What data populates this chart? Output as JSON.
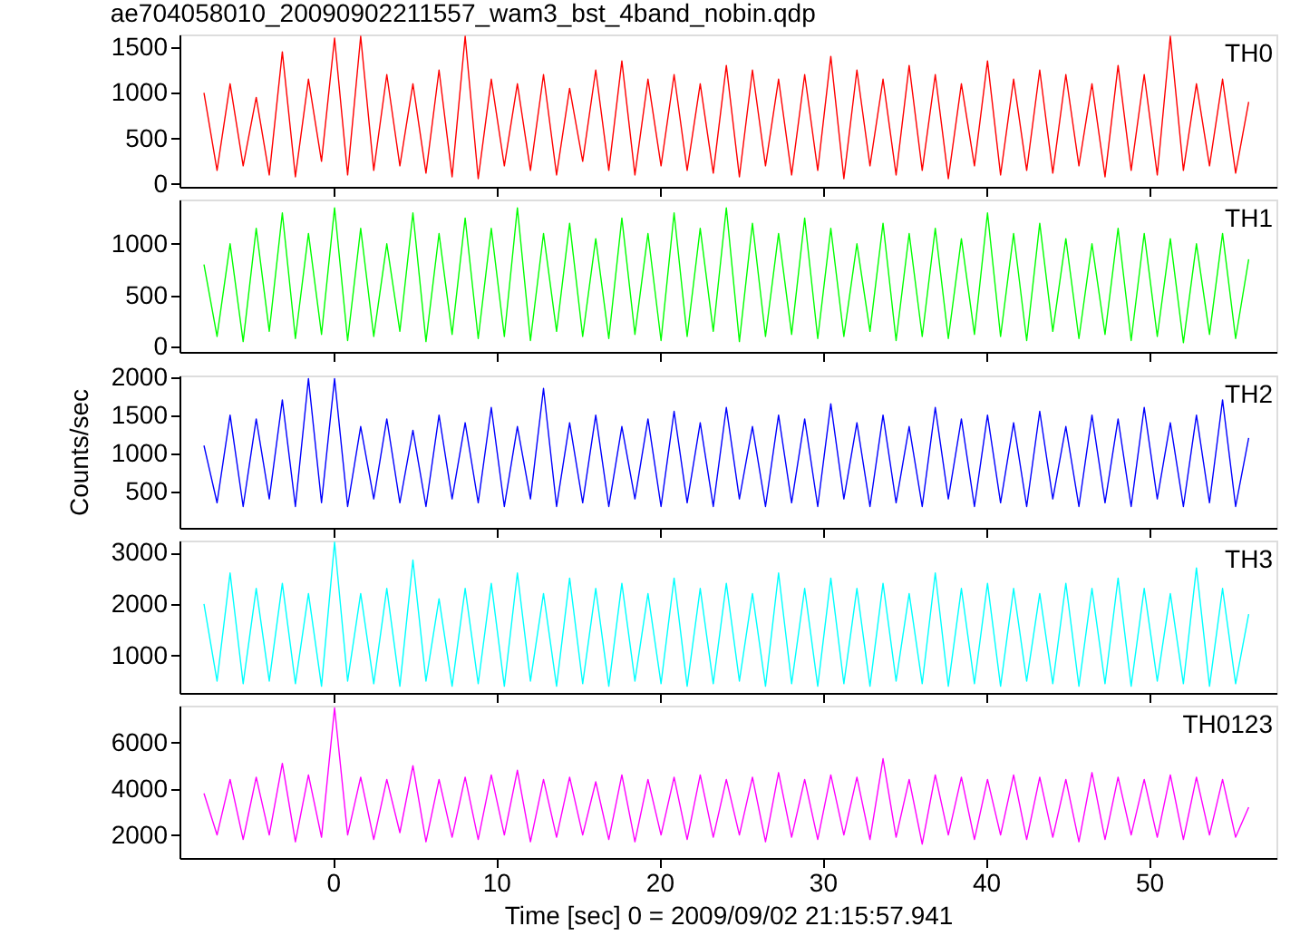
{
  "chart_data": [
    {
      "type": "line",
      "title": "ae704058010_20090902211557_wam3_bst_4band_nobin.qdp",
      "xlim": [
        -9.4,
        57.8
      ],
      "xticks": [
        0,
        10,
        20,
        30,
        40,
        50
      ],
      "x": [
        -7.9,
        -7.1,
        -6.3,
        -5.5,
        -4.7,
        -3.9,
        -3.1,
        -2.3,
        -1.5,
        -0.7,
        0.1,
        0.9,
        1.7,
        2.5,
        3.3,
        4.1,
        4.9,
        5.7,
        6.5,
        7.3,
        8.1,
        8.9,
        9.7,
        10.5,
        11.3,
        12.1,
        12.9,
        13.7,
        14.5,
        15.3,
        16.1,
        16.9,
        17.7,
        18.5,
        19.3,
        20.1,
        20.9,
        21.7,
        22.5,
        23.3,
        24.1,
        24.9,
        25.7,
        26.5,
        27.3,
        28.1,
        28.9,
        29.7,
        30.5,
        31.3,
        32.1,
        32.9,
        33.7,
        34.5,
        35.3,
        36.1,
        36.9,
        37.7,
        38.5,
        39.3,
        40.1,
        40.9,
        41.7,
        42.5,
        43.3,
        44.1,
        44.9,
        45.7,
        46.5,
        47.3,
        48.1,
        48.9,
        49.7,
        50.5,
        51.3,
        52.1,
        52.9,
        53.7,
        54.5,
        55.3,
        56.1
      ],
      "ylim": [
        -30,
        1640
      ],
      "yticks": [
        0,
        500,
        1000,
        1500
      ],
      "tick_labels": "y",
      "series": [
        {
          "name": "TH0",
          "color": "#ff0000",
          "values": [
            1000,
            150,
            1100,
            200,
            950,
            100,
            1450,
            80,
            1150,
            250,
            1600,
            100,
            1620,
            150,
            1200,
            200,
            1100,
            120,
            1250,
            80,
            1620,
            60,
            1150,
            200,
            1100,
            150,
            1200,
            100,
            1050,
            250,
            1250,
            150,
            1350,
            100,
            1150,
            200,
            1200,
            150,
            1100,
            120,
            1300,
            80,
            1250,
            200,
            1150,
            100,
            1200,
            150,
            1400,
            60,
            1250,
            200,
            1150,
            100,
            1300,
            150,
            1200,
            60,
            1100,
            200,
            1350,
            100,
            1150,
            150,
            1250,
            120,
            1200,
            200,
            1100,
            80,
            1300,
            150,
            1200,
            100,
            1620,
            150,
            1100,
            200,
            1150,
            120,
            900
          ]
        }
      ]
    },
    {
      "type": "line",
      "xlim": [
        -9.4,
        57.8
      ],
      "xticks": [
        0,
        10,
        20,
        30,
        40,
        50
      ],
      "x": [
        -7.9,
        -7.1,
        -6.3,
        -5.5,
        -4.7,
        -3.9,
        -3.1,
        -2.3,
        -1.5,
        -0.7,
        0.1,
        0.9,
        1.7,
        2.5,
        3.3,
        4.1,
        4.9,
        5.7,
        6.5,
        7.3,
        8.1,
        8.9,
        9.7,
        10.5,
        11.3,
        12.1,
        12.9,
        13.7,
        14.5,
        15.3,
        16.1,
        16.9,
        17.7,
        18.5,
        19.3,
        20.1,
        20.9,
        21.7,
        22.5,
        23.3,
        24.1,
        24.9,
        25.7,
        26.5,
        27.3,
        28.1,
        28.9,
        29.7,
        30.5,
        31.3,
        32.1,
        32.9,
        33.7,
        34.5,
        35.3,
        36.1,
        36.9,
        37.7,
        38.5,
        39.3,
        40.1,
        40.9,
        41.7,
        42.5,
        43.3,
        44.1,
        44.9,
        45.7,
        46.5,
        47.3,
        48.1,
        48.9,
        49.7,
        50.5,
        51.3,
        52.1,
        52.9,
        53.7,
        54.5,
        55.3,
        56.1
      ],
      "ylim": [
        -50,
        1430
      ],
      "yticks": [
        0,
        500,
        1000
      ],
      "tick_labels": "y",
      "series": [
        {
          "name": "TH1",
          "color": "#00ff00",
          "values": [
            800,
            100,
            1000,
            50,
            1150,
            150,
            1300,
            80,
            1100,
            120,
            1350,
            60,
            1150,
            100,
            1000,
            150,
            1300,
            50,
            1100,
            120,
            1250,
            80,
            1150,
            100,
            1350,
            60,
            1100,
            150,
            1200,
            100,
            1050,
            80,
            1250,
            120,
            1100,
            60,
            1300,
            100,
            1150,
            150,
            1350,
            50,
            1200,
            100,
            1100,
            120,
            1250,
            80,
            1150,
            100,
            1000,
            150,
            1200,
            60,
            1100,
            100,
            1150,
            80,
            1050,
            120,
            1300,
            100,
            1100,
            60,
            1200,
            150,
            1050,
            80,
            1000,
            120,
            1150,
            60,
            1100,
            100,
            1050,
            40,
            1000,
            120,
            1100,
            80,
            850
          ]
        }
      ]
    },
    {
      "type": "line",
      "ylabel": "Counts/sec",
      "xlim": [
        -9.4,
        57.8
      ],
      "xticks": [
        0,
        10,
        20,
        30,
        40,
        50
      ],
      "x": [
        -7.9,
        -7.1,
        -6.3,
        -5.5,
        -4.7,
        -3.9,
        -3.1,
        -2.3,
        -1.5,
        -0.7,
        0.1,
        0.9,
        1.7,
        2.5,
        3.3,
        4.1,
        4.9,
        5.7,
        6.5,
        7.3,
        8.1,
        8.9,
        9.7,
        10.5,
        11.3,
        12.1,
        12.9,
        13.7,
        14.5,
        15.3,
        16.1,
        16.9,
        17.7,
        18.5,
        19.3,
        20.1,
        20.9,
        21.7,
        22.5,
        23.3,
        24.1,
        24.9,
        25.7,
        26.5,
        27.3,
        28.1,
        28.9,
        29.7,
        30.5,
        31.3,
        32.1,
        32.9,
        33.7,
        34.5,
        35.3,
        36.1,
        36.9,
        37.7,
        38.5,
        39.3,
        40.1,
        40.9,
        41.7,
        42.5,
        43.3,
        44.1,
        44.9,
        45.7,
        46.5,
        47.3,
        48.1,
        48.9,
        49.7,
        50.5,
        51.3,
        52.1,
        52.9,
        53.7,
        54.5,
        55.3,
        56.1
      ],
      "ylim": [
        20,
        2020
      ],
      "yticks": [
        500,
        1000,
        1500,
        2000
      ],
      "tick_labels": "y",
      "series": [
        {
          "name": "TH2",
          "color": "#0000ff",
          "values": [
            1100,
            350,
            1500,
            300,
            1450,
            400,
            1700,
            300,
            1980,
            350,
            1980,
            300,
            1350,
            400,
            1450,
            350,
            1300,
            300,
            1500,
            400,
            1400,
            350,
            1600,
            300,
            1350,
            400,
            1850,
            300,
            1400,
            350,
            1500,
            300,
            1350,
            400,
            1450,
            300,
            1550,
            350,
            1400,
            300,
            1600,
            400,
            1350,
            300,
            1500,
            350,
            1450,
            300,
            1650,
            400,
            1400,
            300,
            1500,
            350,
            1350,
            300,
            1600,
            400,
            1450,
            300,
            1500,
            350,
            1400,
            300,
            1550,
            400,
            1350,
            300,
            1500,
            350,
            1450,
            300,
            1600,
            400,
            1400,
            300,
            1500,
            350,
            1700,
            300,
            1200
          ]
        }
      ]
    },
    {
      "type": "line",
      "xlim": [
        -9.4,
        57.8
      ],
      "xticks": [
        0,
        10,
        20,
        30,
        40,
        50
      ],
      "x": [
        -7.9,
        -7.1,
        -6.3,
        -5.5,
        -4.7,
        -3.9,
        -3.1,
        -2.3,
        -1.5,
        -0.7,
        0.1,
        0.9,
        1.7,
        2.5,
        3.3,
        4.1,
        4.9,
        5.7,
        6.5,
        7.3,
        8.1,
        8.9,
        9.7,
        10.5,
        11.3,
        12.1,
        12.9,
        13.7,
        14.5,
        15.3,
        16.1,
        16.9,
        17.7,
        18.5,
        19.3,
        20.1,
        20.9,
        21.7,
        22.5,
        23.3,
        24.1,
        24.9,
        25.7,
        26.5,
        27.3,
        28.1,
        28.9,
        29.7,
        30.5,
        31.3,
        32.1,
        32.9,
        33.7,
        34.5,
        35.3,
        36.1,
        36.9,
        37.7,
        38.5,
        39.3,
        40.1,
        40.9,
        41.7,
        42.5,
        43.3,
        44.1,
        44.9,
        45.7,
        46.5,
        47.3,
        48.1,
        48.9,
        49.7,
        50.5,
        51.3,
        52.1,
        52.9,
        53.7,
        54.5,
        55.3,
        56.1
      ],
      "ylim": [
        270,
        3230
      ],
      "yticks": [
        1000,
        2000,
        3000
      ],
      "tick_labels": "y",
      "series": [
        {
          "name": "TH3",
          "color": "#00ffff",
          "values": [
            2000,
            500,
            2600,
            450,
            2300,
            500,
            2400,
            450,
            2200,
            400,
            3200,
            500,
            2200,
            450,
            2300,
            400,
            2850,
            500,
            2100,
            400,
            2300,
            450,
            2400,
            400,
            2600,
            500,
            2200,
            400,
            2500,
            450,
            2300,
            400,
            2400,
            500,
            2200,
            450,
            2500,
            400,
            2300,
            450,
            2400,
            500,
            2200,
            400,
            2600,
            450,
            2300,
            400,
            2500,
            450,
            2300,
            400,
            2400,
            500,
            2200,
            450,
            2600,
            400,
            2300,
            450,
            2400,
            400,
            2300,
            500,
            2200,
            450,
            2400,
            400,
            2300,
            450,
            2500,
            400,
            2300,
            500,
            2200,
            450,
            2700,
            400,
            2300,
            450,
            1800
          ]
        }
      ]
    },
    {
      "type": "line",
      "xlabel": "Time [sec] 0 = 2009/09/02 21:15:57.941",
      "xlim": [
        -9.4,
        57.8
      ],
      "xticks": [
        0,
        10,
        20,
        30,
        40,
        50
      ],
      "x": [
        -7.9,
        -7.1,
        -6.3,
        -5.5,
        -4.7,
        -3.9,
        -3.1,
        -2.3,
        -1.5,
        -0.7,
        0.1,
        0.9,
        1.7,
        2.5,
        3.3,
        4.1,
        4.9,
        5.7,
        6.5,
        7.3,
        8.1,
        8.9,
        9.7,
        10.5,
        11.3,
        12.1,
        12.9,
        13.7,
        14.5,
        15.3,
        16.1,
        16.9,
        17.7,
        18.5,
        19.3,
        20.1,
        20.9,
        21.7,
        22.5,
        23.3,
        24.1,
        24.9,
        25.7,
        26.5,
        27.3,
        28.1,
        28.9,
        29.7,
        30.5,
        31.3,
        32.1,
        32.9,
        33.7,
        34.5,
        35.3,
        36.1,
        36.9,
        37.7,
        38.5,
        39.3,
        40.1,
        40.9,
        41.7,
        42.5,
        43.3,
        44.1,
        44.9,
        45.7,
        46.5,
        47.3,
        48.1,
        48.9,
        49.7,
        50.5,
        51.3,
        52.1,
        52.9,
        53.7,
        54.5,
        55.3,
        56.1
      ],
      "ylim": [
        1000,
        7600
      ],
      "yticks": [
        2000,
        4000,
        6000
      ],
      "series": [
        {
          "name": "TH0123",
          "color": "#ff00ff",
          "values": [
            3800,
            2000,
            4400,
            1800,
            4500,
            2000,
            5100,
            1700,
            4600,
            1900,
            7500,
            2000,
            4500,
            1800,
            4400,
            2100,
            5000,
            1700,
            4400,
            1900,
            4500,
            1800,
            4600,
            2000,
            4800,
            1700,
            4400,
            1900,
            4500,
            2000,
            4300,
            1800,
            4600,
            1700,
            4400,
            2000,
            4500,
            1800,
            4600,
            1900,
            4400,
            2000,
            4500,
            1700,
            4700,
            1900,
            4400,
            1800,
            4600,
            2000,
            4500,
            1800,
            5300,
            1900,
            4400,
            1600,
            4600,
            2000,
            4500,
            1800,
            4400,
            2000,
            4600,
            1800,
            4500,
            1900,
            4400,
            1700,
            4700,
            1800,
            4500,
            2000,
            4400,
            1900,
            4600,
            1800,
            4500,
            2000,
            4400,
            1900,
            3200
          ]
        }
      ]
    }
  ]
}
